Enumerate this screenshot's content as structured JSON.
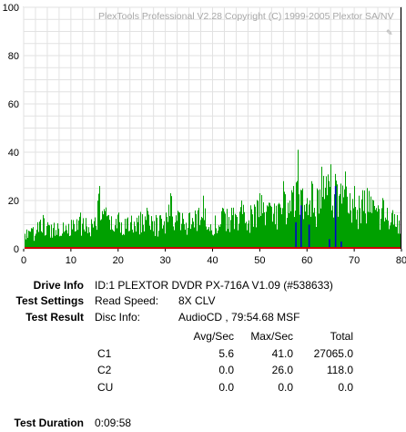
{
  "header": {
    "copyright": "PlexTools Professional V2.28 Copyright (C) 1999-2005 Plextor SA/NV"
  },
  "chart_data": {
    "type": "bar",
    "xlim": [
      0,
      80
    ],
    "ylim": [
      0,
      100
    ],
    "x_ticks": [
      "0",
      "10",
      "20",
      "30",
      "40",
      "50",
      "60",
      "70",
      "80"
    ],
    "y_ticks": [
      "0",
      "20",
      "40",
      "60",
      "80",
      "100"
    ],
    "grid": true,
    "colors": {
      "c1": "#00a000",
      "c2": "#0000cc",
      "cu": "#cc0000",
      "end_marker": "#000000"
    },
    "end_position": 79.9,
    "c1_peaks": [
      {
        "x": 0.5,
        "y": 8
      },
      {
        "x": 2,
        "y": 9
      },
      {
        "x": 4,
        "y": 14
      },
      {
        "x": 5,
        "y": 11
      },
      {
        "x": 8,
        "y": 14
      },
      {
        "x": 10,
        "y": 12
      },
      {
        "x": 12,
        "y": 15
      },
      {
        "x": 15,
        "y": 13
      },
      {
        "x": 16,
        "y": 26
      },
      {
        "x": 18,
        "y": 14
      },
      {
        "x": 20,
        "y": 15
      },
      {
        "x": 22,
        "y": 13
      },
      {
        "x": 24,
        "y": 15
      },
      {
        "x": 26,
        "y": 17
      },
      {
        "x": 28,
        "y": 14
      },
      {
        "x": 30,
        "y": 15
      },
      {
        "x": 31,
        "y": 23
      },
      {
        "x": 33,
        "y": 15
      },
      {
        "x": 35,
        "y": 15
      },
      {
        "x": 37,
        "y": 17
      },
      {
        "x": 38,
        "y": 22
      },
      {
        "x": 40,
        "y": 14
      },
      {
        "x": 42,
        "y": 17
      },
      {
        "x": 44,
        "y": 17
      },
      {
        "x": 46,
        "y": 20
      },
      {
        "x": 48,
        "y": 18
      },
      {
        "x": 50,
        "y": 23
      },
      {
        "x": 52,
        "y": 19
      },
      {
        "x": 54,
        "y": 19
      },
      {
        "x": 55,
        "y": 28
      },
      {
        "x": 56,
        "y": 24
      },
      {
        "x": 57,
        "y": 26
      },
      {
        "x": 58,
        "y": 41
      },
      {
        "x": 59,
        "y": 25
      },
      {
        "x": 60,
        "y": 21
      },
      {
        "x": 61,
        "y": 28
      },
      {
        "x": 62,
        "y": 25
      },
      {
        "x": 63,
        "y": 34
      },
      {
        "x": 64,
        "y": 30
      },
      {
        "x": 65,
        "y": 35
      },
      {
        "x": 66,
        "y": 31
      },
      {
        "x": 67,
        "y": 27
      },
      {
        "x": 68,
        "y": 32
      },
      {
        "x": 69,
        "y": 23
      },
      {
        "x": 70,
        "y": 26
      },
      {
        "x": 71,
        "y": 22
      },
      {
        "x": 72,
        "y": 28
      },
      {
        "x": 73,
        "y": 24
      },
      {
        "x": 74,
        "y": 20
      },
      {
        "x": 75,
        "y": 18
      },
      {
        "x": 76,
        "y": 21
      },
      {
        "x": 77,
        "y": 17
      },
      {
        "x": 78,
        "y": 16
      },
      {
        "x": 79,
        "y": 14
      },
      {
        "x": 79.8,
        "y": 15
      }
    ],
    "c2_spikes": [
      {
        "x": 57.5,
        "y": 11
      },
      {
        "x": 58.6,
        "y": 18
      },
      {
        "x": 60.3,
        "y": 10
      },
      {
        "x": 64.6,
        "y": 4
      },
      {
        "x": 65.9,
        "y": 26
      },
      {
        "x": 67.1,
        "y": 3
      }
    ]
  },
  "info": {
    "drive_info": {
      "label": "Drive Info",
      "value": "ID:1 PLEXTOR DVDR PX-716A V1.09 (#538633)"
    },
    "test_settings": {
      "label": "Test Settings",
      "key": "Read Speed:",
      "value": "8X CLV"
    },
    "test_result": {
      "label": "Test Result",
      "key": "Disc Info:",
      "value": "AudioCD , 79:54.68 MSF"
    },
    "table": {
      "headers": [
        "Avg/Sec",
        "Max/Sec",
        "Total"
      ],
      "rows": [
        {
          "name": "C1",
          "avg": "5.6",
          "max": "41.0",
          "total": "27065.0"
        },
        {
          "name": "C2",
          "avg": "0.0",
          "max": "26.0",
          "total": "118.0"
        },
        {
          "name": "CU",
          "avg": "0.0",
          "max": "0.0",
          "total": "0.0"
        }
      ]
    },
    "test_duration": {
      "label": "Test Duration",
      "value": "0:09:58"
    }
  }
}
